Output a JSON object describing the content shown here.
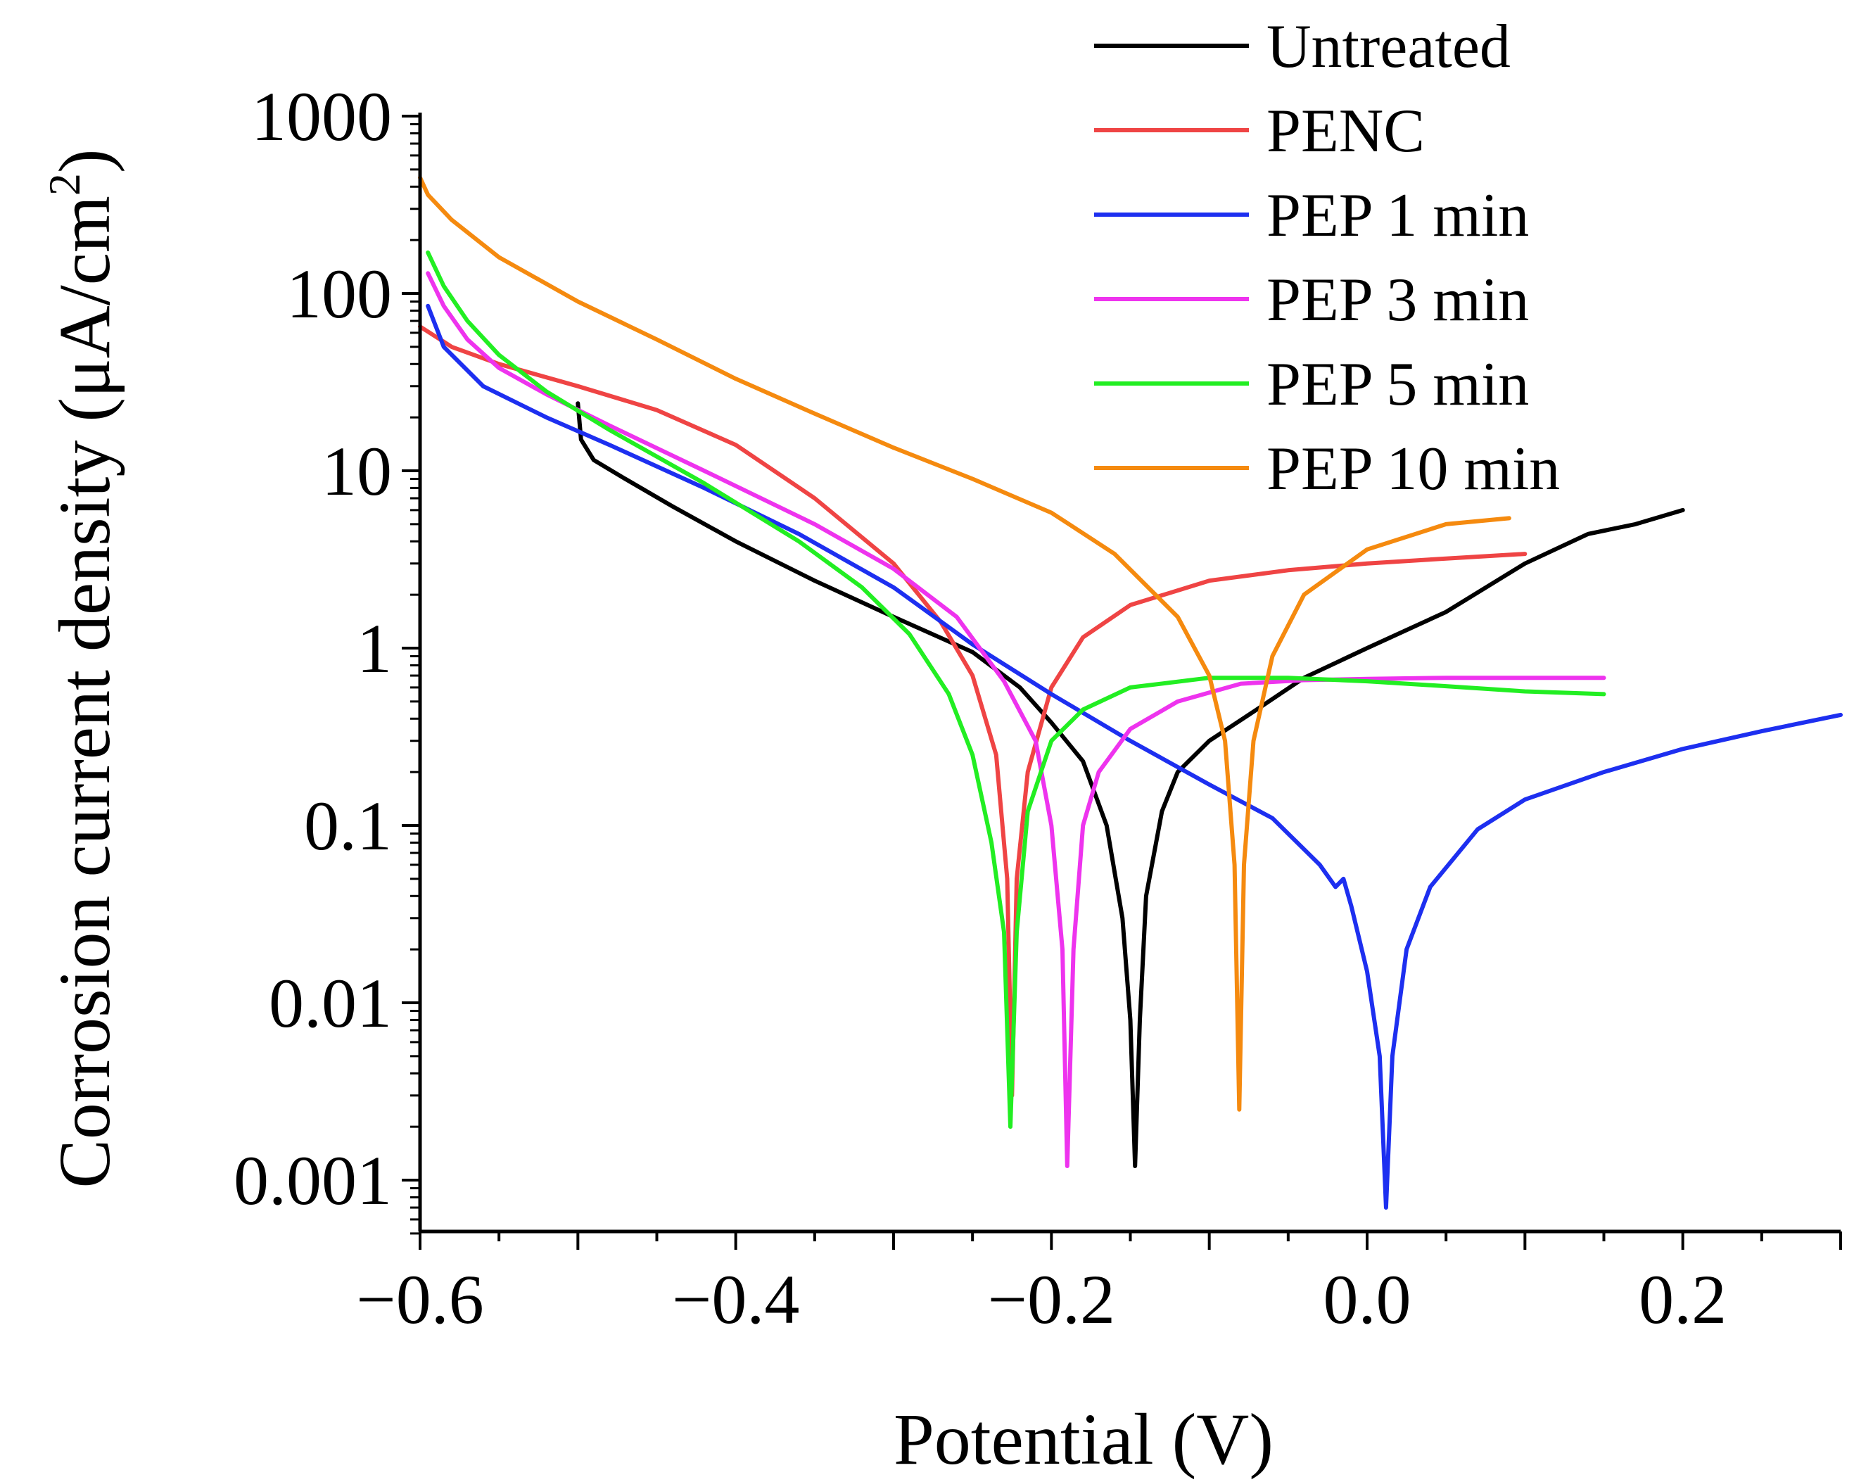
{
  "chart_data": {
    "type": "line",
    "title": "",
    "xlabel": "Potential (V)",
    "ylabel_main": "Corrosion current density (μA/cm",
    "ylabel_sup": "2",
    "ylabel_close": ")",
    "xscale": "linear",
    "yscale": "log",
    "xlim": [
      -0.6,
      0.3
    ],
    "ylim": [
      0.0005,
      1000
    ],
    "x_ticks": [
      -0.6,
      -0.4,
      -0.2,
      0.0,
      0.2
    ],
    "x_tick_labels": [
      "−0.6",
      "−0.4",
      "−0.2",
      "0.0",
      "0.2"
    ],
    "y_ticks": [
      1000,
      100,
      10,
      1,
      0.1,
      0.01,
      0.001
    ],
    "y_tick_labels": [
      "1000",
      "100",
      "10",
      "1",
      "0.1",
      "0.01",
      "0.001"
    ],
    "grid": false,
    "legend_position": "top-right",
    "series": [
      {
        "name": "Untreated",
        "color": "#000000",
        "points": [
          [
            -0.5,
            24
          ],
          [
            -0.498,
            15
          ],
          [
            -0.49,
            11.5
          ],
          [
            -0.47,
            9
          ],
          [
            -0.44,
            6.3
          ],
          [
            -0.4,
            4
          ],
          [
            -0.35,
            2.4
          ],
          [
            -0.3,
            1.5
          ],
          [
            -0.25,
            0.95
          ],
          [
            -0.22,
            0.6
          ],
          [
            -0.2,
            0.38
          ],
          [
            -0.18,
            0.23
          ],
          [
            -0.165,
            0.1
          ],
          [
            -0.155,
            0.03
          ],
          [
            -0.15,
            0.008
          ],
          [
            -0.147,
            0.0012
          ],
          [
            -0.144,
            0.008
          ],
          [
            -0.14,
            0.04
          ],
          [
            -0.13,
            0.12
          ],
          [
            -0.12,
            0.2
          ],
          [
            -0.1,
            0.3
          ],
          [
            -0.07,
            0.45
          ],
          [
            -0.04,
            0.68
          ],
          [
            0.0,
            1.0
          ],
          [
            0.05,
            1.6
          ],
          [
            0.1,
            3.0
          ],
          [
            0.14,
            4.4
          ],
          [
            0.17,
            5.0
          ],
          [
            0.2,
            6.0
          ]
        ]
      },
      {
        "name": "PENC",
        "color": "#ef4444",
        "points": [
          [
            -0.6,
            65
          ],
          [
            -0.58,
            50
          ],
          [
            -0.55,
            40
          ],
          [
            -0.5,
            30
          ],
          [
            -0.45,
            22
          ],
          [
            -0.4,
            14
          ],
          [
            -0.35,
            7
          ],
          [
            -0.3,
            3
          ],
          [
            -0.27,
            1.4
          ],
          [
            -0.25,
            0.7
          ],
          [
            -0.235,
            0.25
          ],
          [
            -0.228,
            0.05
          ],
          [
            -0.225,
            0.003
          ],
          [
            -0.222,
            0.05
          ],
          [
            -0.215,
            0.2
          ],
          [
            -0.2,
            0.6
          ],
          [
            -0.18,
            1.15
          ],
          [
            -0.15,
            1.75
          ],
          [
            -0.1,
            2.4
          ],
          [
            -0.05,
            2.75
          ],
          [
            0.0,
            3.0
          ],
          [
            0.05,
            3.2
          ],
          [
            0.1,
            3.4
          ]
        ]
      },
      {
        "name": "PEP 1 min",
        "color": "#1d2ff0",
        "points": [
          [
            -0.595,
            85
          ],
          [
            -0.585,
            50
          ],
          [
            -0.56,
            30
          ],
          [
            -0.52,
            20
          ],
          [
            -0.48,
            14
          ],
          [
            -0.42,
            8
          ],
          [
            -0.36,
            4.4
          ],
          [
            -0.3,
            2.2
          ],
          [
            -0.25,
            1.05
          ],
          [
            -0.2,
            0.55
          ],
          [
            -0.15,
            0.3
          ],
          [
            -0.1,
            0.17
          ],
          [
            -0.06,
            0.11
          ],
          [
            -0.03,
            0.06
          ],
          [
            -0.02,
            0.045
          ],
          [
            -0.015,
            0.05
          ],
          [
            -0.01,
            0.035
          ],
          [
            0.0,
            0.015
          ],
          [
            0.008,
            0.005
          ],
          [
            0.012,
            0.0007
          ],
          [
            0.016,
            0.005
          ],
          [
            0.025,
            0.02
          ],
          [
            0.04,
            0.045
          ],
          [
            0.07,
            0.095
          ],
          [
            0.1,
            0.14
          ],
          [
            0.15,
            0.2
          ],
          [
            0.2,
            0.27
          ],
          [
            0.25,
            0.34
          ],
          [
            0.3,
            0.42
          ]
        ]
      },
      {
        "name": "PEP 3 min",
        "color": "#ee33ee",
        "points": [
          [
            -0.595,
            130
          ],
          [
            -0.585,
            85
          ],
          [
            -0.57,
            55
          ],
          [
            -0.55,
            38
          ],
          [
            -0.52,
            27
          ],
          [
            -0.48,
            18
          ],
          [
            -0.42,
            10
          ],
          [
            -0.35,
            5
          ],
          [
            -0.3,
            2.8
          ],
          [
            -0.26,
            1.5
          ],
          [
            -0.23,
            0.65
          ],
          [
            -0.21,
            0.3
          ],
          [
            -0.2,
            0.1
          ],
          [
            -0.193,
            0.02
          ],
          [
            -0.19,
            0.0012
          ],
          [
            -0.186,
            0.02
          ],
          [
            -0.18,
            0.1
          ],
          [
            -0.17,
            0.2
          ],
          [
            -0.15,
            0.35
          ],
          [
            -0.12,
            0.5
          ],
          [
            -0.08,
            0.63
          ],
          [
            -0.04,
            0.66
          ],
          [
            0.0,
            0.67
          ],
          [
            0.05,
            0.68
          ],
          [
            0.1,
            0.68
          ],
          [
            0.15,
            0.68
          ]
        ]
      },
      {
        "name": "PEP 5 min",
        "color": "#22ee22",
        "points": [
          [
            -0.595,
            170
          ],
          [
            -0.585,
            110
          ],
          [
            -0.57,
            70
          ],
          [
            -0.55,
            45
          ],
          [
            -0.52,
            28
          ],
          [
            -0.48,
            17
          ],
          [
            -0.42,
            8.5
          ],
          [
            -0.36,
            4
          ],
          [
            -0.32,
            2.2
          ],
          [
            -0.29,
            1.2
          ],
          [
            -0.265,
            0.55
          ],
          [
            -0.25,
            0.25
          ],
          [
            -0.238,
            0.08
          ],
          [
            -0.23,
            0.025
          ],
          [
            -0.226,
            0.002
          ],
          [
            -0.222,
            0.025
          ],
          [
            -0.215,
            0.12
          ],
          [
            -0.2,
            0.3
          ],
          [
            -0.18,
            0.45
          ],
          [
            -0.15,
            0.6
          ],
          [
            -0.1,
            0.68
          ],
          [
            -0.05,
            0.68
          ],
          [
            0.0,
            0.65
          ],
          [
            0.05,
            0.61
          ],
          [
            0.1,
            0.57
          ],
          [
            0.15,
            0.55
          ]
        ]
      },
      {
        "name": "PEP 10 min",
        "color": "#f58a0f",
        "points": [
          [
            -0.6,
            450
          ],
          [
            -0.595,
            360
          ],
          [
            -0.58,
            260
          ],
          [
            -0.55,
            160
          ],
          [
            -0.5,
            90
          ],
          [
            -0.45,
            55
          ],
          [
            -0.4,
            33
          ],
          [
            -0.35,
            21
          ],
          [
            -0.3,
            13.5
          ],
          [
            -0.25,
            9
          ],
          [
            -0.2,
            5.8
          ],
          [
            -0.16,
            3.4
          ],
          [
            -0.12,
            1.5
          ],
          [
            -0.1,
            0.7
          ],
          [
            -0.09,
            0.3
          ],
          [
            -0.084,
            0.06
          ],
          [
            -0.081,
            0.0025
          ],
          [
            -0.078,
            0.06
          ],
          [
            -0.072,
            0.3
          ],
          [
            -0.06,
            0.9
          ],
          [
            -0.04,
            2.0
          ],
          [
            0.0,
            3.6
          ],
          [
            0.05,
            5.0
          ],
          [
            0.09,
            5.4
          ]
        ]
      }
    ]
  }
}
